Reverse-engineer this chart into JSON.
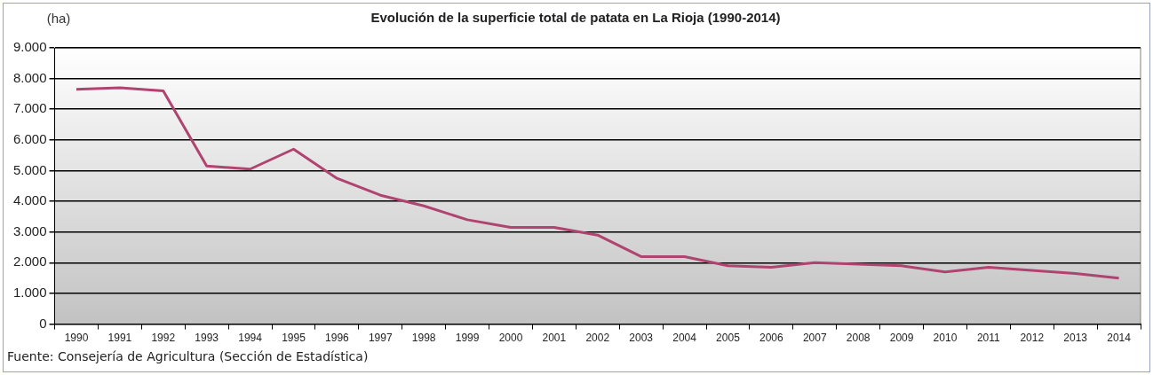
{
  "chart_data": {
    "type": "line",
    "title": "Evolución de la superficie total de patata en La Rioja (1990-2014)",
    "ylabel": "(ha)",
    "categories": [
      "1990",
      "1991",
      "1992",
      "1993",
      "1994",
      "1995",
      "1996",
      "1997",
      "1998",
      "1999",
      "2000",
      "2001",
      "2002",
      "2003",
      "2004",
      "2005",
      "2006",
      "2007",
      "2008",
      "2009",
      "2010",
      "2011",
      "2012",
      "2013",
      "2014"
    ],
    "series": [
      {
        "color": "#b04470",
        "values": [
          7650,
          7700,
          7600,
          5150,
          5050,
          5700,
          4750,
          4200,
          3850,
          3400,
          3150,
          3150,
          2900,
          2200,
          2200,
          1900,
          1850,
          2000,
          1950,
          1900,
          1700,
          1850,
          1750,
          1650,
          1500
        ]
      }
    ],
    "ylim": [
      0,
      9000
    ],
    "yticks": [
      {
        "value": 0,
        "label": "0"
      },
      {
        "value": 1000,
        "label": "1.000"
      },
      {
        "value": 2000,
        "label": "2.000"
      },
      {
        "value": 3000,
        "label": "3.000"
      },
      {
        "value": 4000,
        "label": "4.000"
      },
      {
        "value": 5000,
        "label": "5.000"
      },
      {
        "value": 6000,
        "label": "6.000"
      },
      {
        "value": 7000,
        "label": "7.000"
      },
      {
        "value": 8000,
        "label": "8.000"
      },
      {
        "value": 9000,
        "label": "9.000"
      }
    ],
    "grid": "y",
    "legend": false,
    "marker": "none",
    "line_style": "solid",
    "annotations": [
      "Fuente: Consejería de Agricultura (Sección de Estadística)"
    ]
  }
}
